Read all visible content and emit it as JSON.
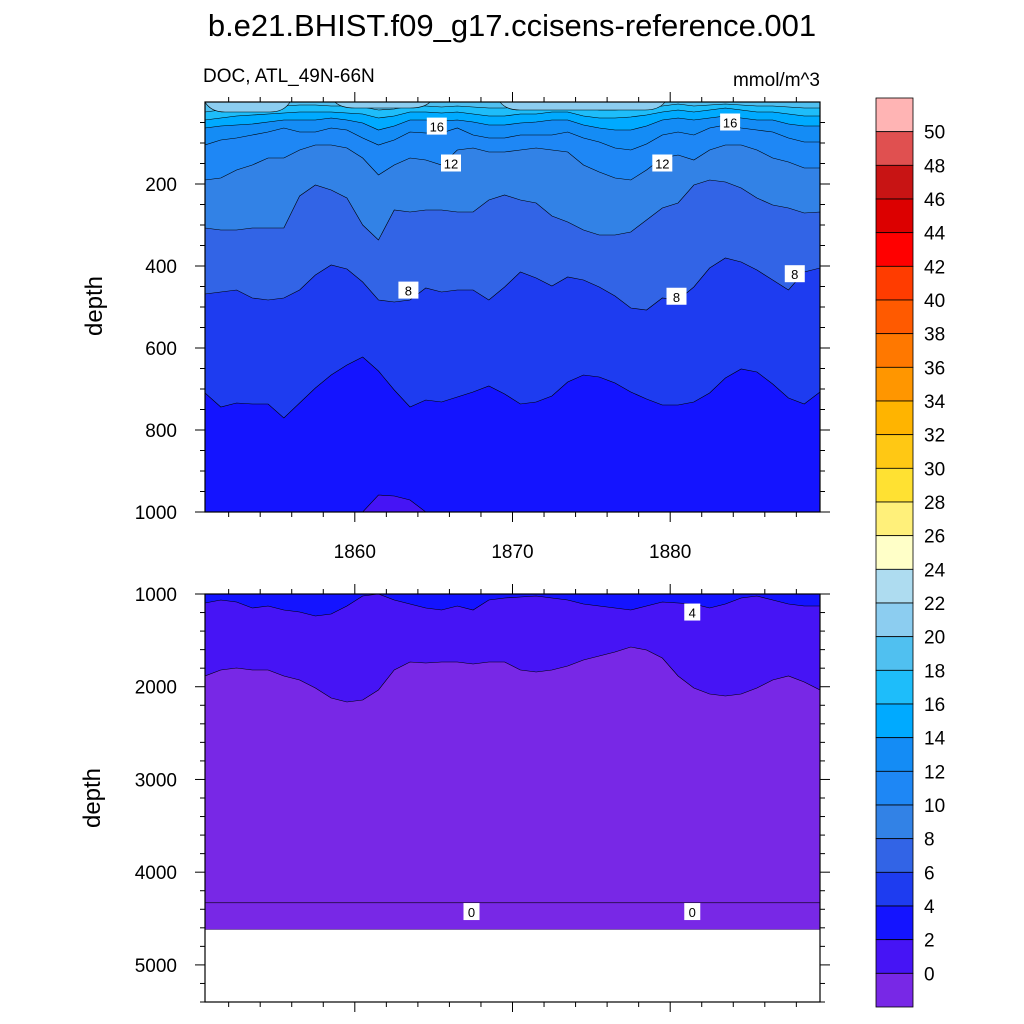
{
  "chart_data": {
    "type": "contour",
    "title": "b.e21.BHIST.f09_g17.ccisens-reference.001",
    "subtitle_left": "DOC, ATL_49N-66N",
    "subtitle_right": "mmol/m^3",
    "colorbar": {
      "levels": [
        "50",
        "48",
        "46",
        "44",
        "42",
        "40",
        "38",
        "36",
        "34",
        "32",
        "30",
        "28",
        "26",
        "24",
        "22",
        "20",
        "18",
        "16",
        "14",
        "12",
        "10",
        "8",
        "6",
        "4",
        "2",
        "0"
      ],
      "colors_top_to_bottom": [
        "#ffb4b4",
        "#e05050",
        "#c81414",
        "#dc0000",
        "#ff0000",
        "#ff3c00",
        "#ff5a00",
        "#ff7800",
        "#ff9600",
        "#ffb400",
        "#ffc814",
        "#ffe132",
        "#fff07a",
        "#ffffc8",
        "#aedcf0",
        "#8ccdf0",
        "#50c0f0",
        "#1ebdfa",
        "#00aaff",
        "#148cf5",
        "#1e87f5",
        "#3282e6",
        "#3264e6",
        "#1e3cf0",
        "#1414ff",
        "#4614f5",
        "#7828e6"
      ]
    },
    "panels": [
      {
        "id": "upper",
        "xlabel": "",
        "ylabel": "depth",
        "xlim": [
          1850.5,
          1889.5
        ],
        "ylim": [
          0,
          1000
        ],
        "xticks": [
          "1860",
          "1870",
          "1880"
        ],
        "yticks": [
          "200",
          "400",
          "600",
          "800",
          "1000"
        ],
        "contour_labels": [
          {
            "text": "16",
            "x": 1865.2,
            "depth": 60
          },
          {
            "text": "16",
            "x": 1883.8,
            "depth": 50
          },
          {
            "text": "12",
            "x": 1866.1,
            "depth": 150
          },
          {
            "text": "12",
            "x": 1879.5,
            "depth": 150
          },
          {
            "text": "8",
            "x": 1863.4,
            "depth": 460
          },
          {
            "text": "8",
            "x": 1880.4,
            "depth": 475
          },
          {
            "text": "8",
            "x": 1887.9,
            "depth": 420
          }
        ]
      },
      {
        "id": "lower",
        "xlabel": "",
        "ylabel": "depth",
        "xlim": [
          1850.5,
          1889.5
        ],
        "ylim": [
          1000,
          5400
        ],
        "xticks": [],
        "yticks": [
          "1000",
          "2000",
          "3000",
          "4000",
          "5000"
        ],
        "contour_labels": [
          {
            "text": "4",
            "x": 1881.4,
            "depth": 1200
          },
          {
            "text": "0",
            "x": 1867.4,
            "depth": 4430
          },
          {
            "text": "0",
            "x": 1881.4,
            "depth": 4430
          }
        ]
      }
    ]
  }
}
